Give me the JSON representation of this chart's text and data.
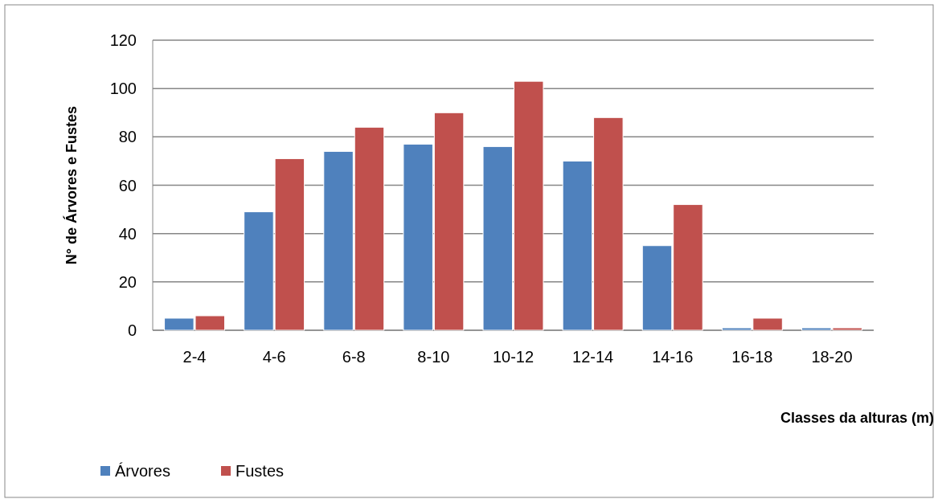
{
  "chart_data": {
    "type": "bar",
    "xlabel": "Classes da alturas (m)",
    "ylabel": "N° de Árvores e Fustes",
    "categories": [
      "2-4",
      "4-6",
      "6-8",
      "8-10",
      "10-12",
      "12-14",
      "14-16",
      "16-18",
      "18-20"
    ],
    "series": [
      {
        "name": "Árvores",
        "color": "#4f81bd",
        "values": [
          5,
          49,
          74,
          77,
          76,
          70,
          35,
          1,
          1
        ]
      },
      {
        "name": "Fustes",
        "color": "#c0504d",
        "values": [
          6,
          71,
          84,
          90,
          103,
          88,
          52,
          5,
          1
        ]
      }
    ],
    "ylim": [
      0,
      120
    ],
    "yticks": [
      0,
      20,
      40,
      60,
      80,
      100,
      120
    ],
    "grid": "y",
    "legend": "bottom left"
  }
}
